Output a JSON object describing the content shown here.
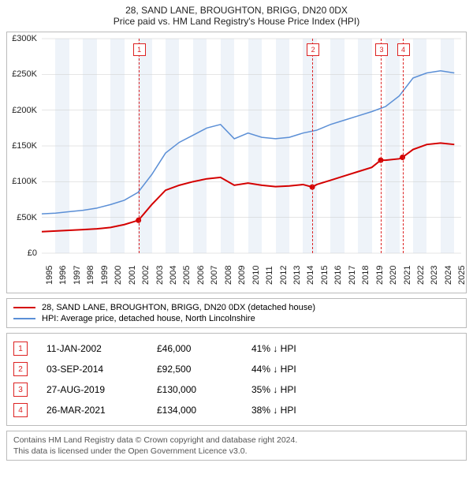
{
  "title1": "28, SAND LANE, BROUGHTON, BRIGG, DN20 0DX",
  "title2": "Price paid vs. HM Land Registry's House Price Index (HPI)",
  "chart": {
    "type": "line",
    "x_min": 1995,
    "x_max": 2025.5,
    "y_min": 0,
    "y_max": 300000,
    "y_ticks": [
      0,
      50000,
      100000,
      150000,
      200000,
      250000,
      300000
    ],
    "y_tick_labels": [
      "£0",
      "£50K",
      "£100K",
      "£150K",
      "£200K",
      "£250K",
      "£300K"
    ],
    "x_ticks": [
      1995,
      1996,
      1997,
      1998,
      1999,
      2000,
      2001,
      2002,
      2003,
      2004,
      2005,
      2006,
      2007,
      2008,
      2009,
      2010,
      2011,
      2012,
      2013,
      2014,
      2015,
      2016,
      2017,
      2018,
      2019,
      2020,
      2021,
      2022,
      2023,
      2024,
      2025
    ],
    "band_years_even": true,
    "band_color": "#eef3f9",
    "grid_color": "#dddddd",
    "series": [
      {
        "name": "property",
        "label": "28, SAND LANE, BROUGHTON, BRIGG, DN20 0DX (detached house)",
        "color": "#d40000",
        "width": 2,
        "points": [
          [
            1995,
            30000
          ],
          [
            1996,
            31000
          ],
          [
            1997,
            32000
          ],
          [
            1998,
            33000
          ],
          [
            1999,
            34000
          ],
          [
            2000,
            36000
          ],
          [
            2001,
            40000
          ],
          [
            2002.03,
            46000
          ],
          [
            2003,
            68000
          ],
          [
            2004,
            88000
          ],
          [
            2005,
            95000
          ],
          [
            2006,
            100000
          ],
          [
            2007,
            104000
          ],
          [
            2008,
            106000
          ],
          [
            2009,
            95000
          ],
          [
            2010,
            98000
          ],
          [
            2011,
            95000
          ],
          [
            2012,
            93000
          ],
          [
            2013,
            94000
          ],
          [
            2014,
            96000
          ],
          [
            2014.67,
            92500
          ],
          [
            2015,
            96000
          ],
          [
            2016,
            102000
          ],
          [
            2017,
            108000
          ],
          [
            2018,
            114000
          ],
          [
            2019,
            120000
          ],
          [
            2019.65,
            130000
          ],
          [
            2020,
            130000
          ],
          [
            2021,
            132000
          ],
          [
            2021.23,
            134000
          ],
          [
            2022,
            145000
          ],
          [
            2023,
            152000
          ],
          [
            2024,
            154000
          ],
          [
            2025,
            152000
          ]
        ],
        "dots": [
          [
            2002.03,
            46000
          ],
          [
            2014.67,
            92500
          ],
          [
            2019.65,
            130000
          ],
          [
            2021.23,
            134000
          ]
        ]
      },
      {
        "name": "hpi",
        "label": "HPI: Average price, detached house, North Lincolnshire",
        "color": "#5b8fd6",
        "width": 1.5,
        "points": [
          [
            1995,
            55000
          ],
          [
            1996,
            56000
          ],
          [
            1997,
            58000
          ],
          [
            1998,
            60000
          ],
          [
            1999,
            63000
          ],
          [
            2000,
            68000
          ],
          [
            2001,
            74000
          ],
          [
            2002,
            85000
          ],
          [
            2003,
            110000
          ],
          [
            2004,
            140000
          ],
          [
            2005,
            155000
          ],
          [
            2006,
            165000
          ],
          [
            2007,
            175000
          ],
          [
            2008,
            180000
          ],
          [
            2009,
            160000
          ],
          [
            2010,
            168000
          ],
          [
            2011,
            162000
          ],
          [
            2012,
            160000
          ],
          [
            2013,
            162000
          ],
          [
            2014,
            168000
          ],
          [
            2015,
            172000
          ],
          [
            2016,
            180000
          ],
          [
            2017,
            186000
          ],
          [
            2018,
            192000
          ],
          [
            2019,
            198000
          ],
          [
            2020,
            205000
          ],
          [
            2021,
            220000
          ],
          [
            2022,
            245000
          ],
          [
            2023,
            252000
          ],
          [
            2024,
            255000
          ],
          [
            2025,
            252000
          ]
        ]
      }
    ],
    "markers": [
      {
        "n": "1",
        "x": 2002.03
      },
      {
        "n": "2",
        "x": 2014.67
      },
      {
        "n": "3",
        "x": 2019.65
      },
      {
        "n": "4",
        "x": 2021.23
      }
    ]
  },
  "legend": [
    {
      "color": "#d40000",
      "label": "28, SAND LANE, BROUGHTON, BRIGG, DN20 0DX (detached house)"
    },
    {
      "color": "#5b8fd6",
      "label": "HPI: Average price, detached house, North Lincolnshire"
    }
  ],
  "marker_table": [
    {
      "n": "1",
      "date": "11-JAN-2002",
      "price": "£46,000",
      "delta": "41% ↓ HPI"
    },
    {
      "n": "2",
      "date": "03-SEP-2014",
      "price": "£92,500",
      "delta": "44% ↓ HPI"
    },
    {
      "n": "3",
      "date": "27-AUG-2019",
      "price": "£130,000",
      "delta": "35% ↓ HPI"
    },
    {
      "n": "4",
      "date": "26-MAR-2021",
      "price": "£134,000",
      "delta": "38% ↓ HPI"
    }
  ],
  "footer1": "Contains HM Land Registry data © Crown copyright and database right 2024.",
  "footer2": "This data is licensed under the Open Government Licence v3.0."
}
